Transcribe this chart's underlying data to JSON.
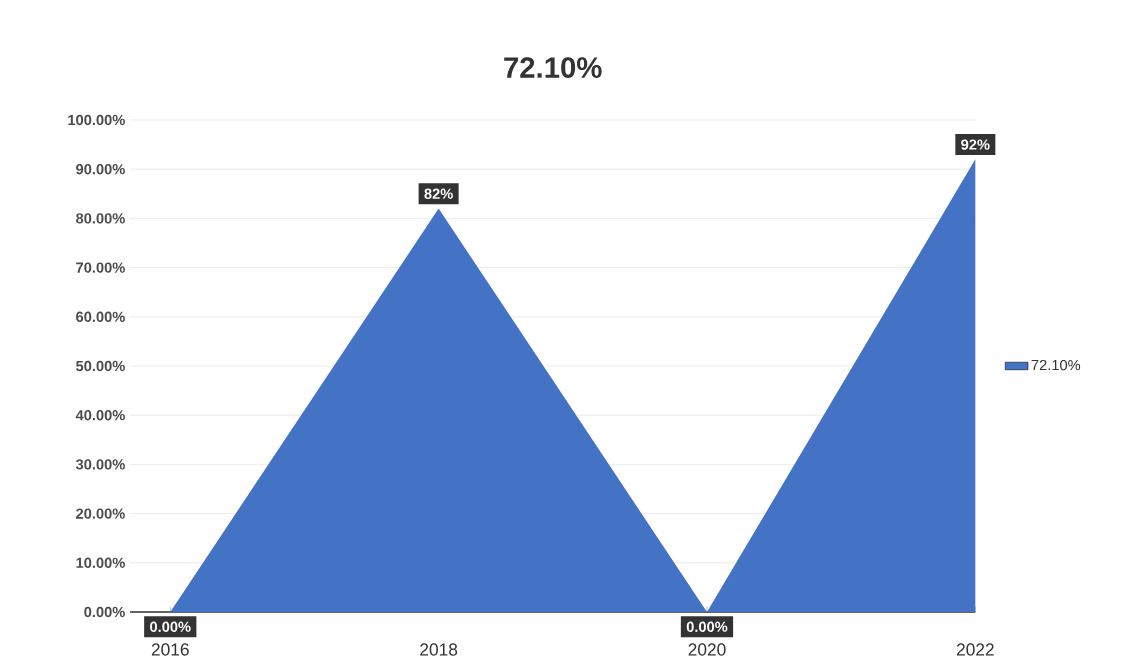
{
  "chart_data": {
    "type": "area",
    "title": "72.10%",
    "categories": [
      "2016",
      "2018",
      "2020",
      "2022"
    ],
    "series": [
      {
        "name": "72.10%",
        "color": "#4472c4",
        "values": [
          0,
          82,
          0,
          92
        ],
        "value_labels": [
          "0.00%",
          "82%",
          "0.00%",
          "92%"
        ]
      }
    ],
    "ylim": [
      0,
      100
    ],
    "yticks": [
      {
        "value": 0,
        "label": "0.00%"
      },
      {
        "value": 10,
        "label": "10.00%"
      },
      {
        "value": 20,
        "label": "20.00%"
      },
      {
        "value": 30,
        "label": "30.00%"
      },
      {
        "value": 40,
        "label": "40.00%"
      },
      {
        "value": 50,
        "label": "50.00%"
      },
      {
        "value": 60,
        "label": "60.00%"
      },
      {
        "value": 70,
        "label": "70.00%"
      },
      {
        "value": 80,
        "label": "80.00%"
      },
      {
        "value": 90,
        "label": "90.00%"
      },
      {
        "value": 100,
        "label": "100.00%"
      }
    ],
    "grid": "y",
    "legend": "right"
  }
}
